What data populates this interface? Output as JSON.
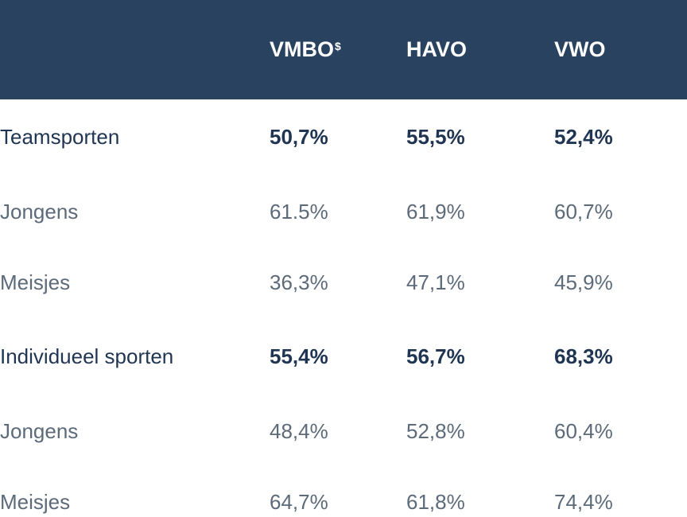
{
  "table": {
    "header": {
      "col_vmbo": "VMBO",
      "col_vmbo_sup": "$",
      "col_havo": "HAVO",
      "col_vwo": "VWO"
    },
    "rows": [
      {
        "label": "Teamsporten",
        "vmbo": "50,7%",
        "havo": "55,5%",
        "vwo": "52,4%"
      },
      {
        "label": "Jongens",
        "vmbo": "61.5%",
        "havo": "61,9%",
        "vwo": "60,7%"
      },
      {
        "label": "Meisjes",
        "vmbo": "36,3%",
        "havo": "47,1%",
        "vwo": "45,9%"
      },
      {
        "label": "Individueel sporten",
        "vmbo": "55,4%",
        "havo": "56,7%",
        "vwo": "68,3%"
      },
      {
        "label": "Jongens",
        "vmbo": "48,4%",
        "havo": "52,8%",
        "vwo": "60,4%"
      },
      {
        "label": "Meisjes",
        "vmbo": "64,7%",
        "havo": "61,8%",
        "vwo": "74,4%"
      }
    ]
  },
  "colors": {
    "header_bg": "#294260",
    "header_text": "#ffffff",
    "group_text": "#1f3552",
    "sub_text": "#5c6a7a"
  }
}
